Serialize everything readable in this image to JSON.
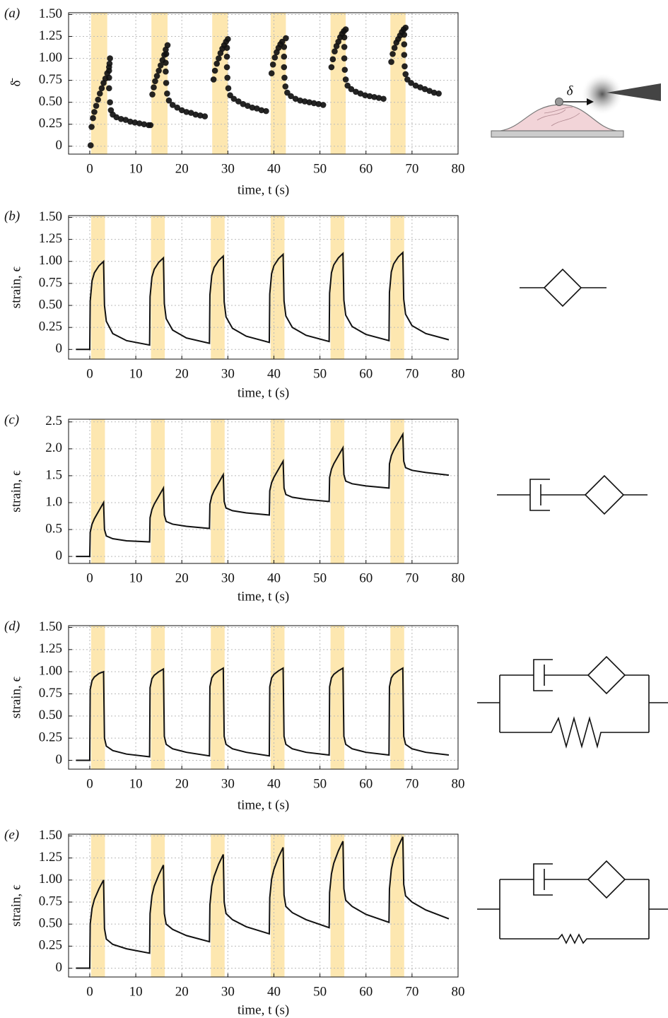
{
  "chart_data": [
    {
      "type": "scatter",
      "panel_label": "(a)",
      "xlabel": "time, t (s)",
      "ylabel": "δ̄",
      "annotation": "δ",
      "color": "#111111",
      "highlight_color": "#fde7b0",
      "highlight_spans": [
        [
          0.3,
          3.8
        ],
        [
          13.4,
          16.9
        ],
        [
          26.6,
          30
        ],
        [
          39.3,
          42.6
        ],
        [
          52.3,
          55.6
        ],
        [
          65.3,
          68.6
        ]
      ],
      "xlim": [
        -4.6,
        80
      ],
      "xticks": [
        0,
        10,
        20,
        30,
        40,
        50,
        60,
        70,
        80
      ],
      "ylim": [
        -0.09,
        1.52
      ],
      "yticks": [
        0,
        0.25,
        {
          "value": 0.5,
          "label": "0.50"
        },
        0.75,
        {
          "value": 1,
          "label": "1.00"
        },
        1.25,
        {
          "value": 1.5,
          "label": "1.50"
        }
      ],
      "grid": true,
      "x": [
        0.2,
        0.4,
        0.7,
        1,
        1.4,
        1.8,
        2.2,
        2.6,
        3,
        3.4,
        3.8,
        4.2,
        4.4,
        4.3,
        4.2,
        4.2,
        4.2,
        4.4,
        4.6,
        5,
        5.8,
        6.8,
        7.8,
        8.8,
        9.8,
        10.8,
        11.8,
        12.8,
        13.2,
        13.6,
        13.9,
        14.2,
        14.6,
        15,
        15.4,
        15.8,
        16.2,
        16.5,
        16.9,
        16.6,
        16.5,
        16.5,
        16.6,
        16.8,
        17.2,
        18,
        19,
        20,
        21,
        22,
        23,
        24,
        25,
        26.9,
        27.2,
        27.6,
        28,
        28.4,
        28.8,
        29.2,
        29.6,
        30,
        29.8,
        29.8,
        29.8,
        29.9,
        30.1,
        30.5,
        31.3,
        32.3,
        33.3,
        34.3,
        35.3,
        36.3,
        37.3,
        38.3,
        39.5,
        39.8,
        40.2,
        40.6,
        41,
        41.4,
        41.8,
        42.6,
        42.2,
        42.2,
        42.2,
        42.3,
        42.5,
        42.9,
        43.7,
        44.7,
        45.7,
        46.7,
        47.7,
        48.7,
        49.7,
        50.7,
        52.5,
        52.8,
        53.2,
        53.6,
        54,
        54.4,
        54.8,
        55.2,
        55.6,
        55.3,
        55.3,
        55.3,
        55.4,
        55.6,
        56,
        56.8,
        57.8,
        58.8,
        59.8,
        60.8,
        61.8,
        62.8,
        63.8,
        65.5,
        65.8,
        66.2,
        66.6,
        67,
        67.4,
        67.8,
        68.2,
        68.6,
        68.3,
        68.3,
        68.3,
        68.4,
        68.6,
        69,
        69.8,
        70.8,
        71.8,
        72.8,
        73.8,
        74.8,
        75.8
      ],
      "y": [
        0.01,
        0.22,
        0.32,
        0.39,
        0.46,
        0.53,
        0.6,
        0.66,
        0.72,
        0.77,
        0.83,
        0.9,
        1,
        0.94,
        0.86,
        0.78,
        0.66,
        0.5,
        0.41,
        0.36,
        0.33,
        0.31,
        0.3,
        0.28,
        0.27,
        0.26,
        0.25,
        0.24,
        0.24,
        0.59,
        0.67,
        0.74,
        0.8,
        0.86,
        0.92,
        0.98,
        1.04,
        1.1,
        1.15,
        1.05,
        0.95,
        0.85,
        0.72,
        0.6,
        0.52,
        0.47,
        0.44,
        0.41,
        0.39,
        0.38,
        0.36,
        0.35,
        0.34,
        0.76,
        0.86,
        0.94,
        1,
        1.06,
        1.11,
        1.15,
        1.19,
        1.22,
        1.12,
        1.02,
        0.9,
        0.78,
        0.66,
        0.58,
        0.54,
        0.51,
        0.48,
        0.46,
        0.44,
        0.43,
        0.41,
        0.4,
        0.83,
        0.93,
        1.01,
        1.07,
        1.12,
        1.16,
        1.19,
        1.23,
        1.13,
        1.02,
        0.9,
        0.78,
        0.68,
        0.61,
        0.57,
        0.54,
        0.52,
        0.51,
        0.5,
        0.49,
        0.48,
        0.47,
        0.9,
        0.99,
        1.08,
        1.14,
        1.19,
        1.24,
        1.28,
        1.31,
        1.33,
        1.24,
        1.13,
        1,
        0.87,
        0.76,
        0.69,
        0.65,
        0.62,
        0.6,
        0.58,
        0.57,
        0.56,
        0.55,
        0.54,
        0.96,
        1.05,
        1.12,
        1.18,
        1.22,
        1.26,
        1.3,
        1.33,
        1.35,
        1.27,
        1.16,
        1.04,
        0.91,
        0.82,
        0.76,
        0.72,
        0.69,
        0.67,
        0.65,
        0.63,
        0.61,
        0.6
      ]
    },
    {
      "type": "line",
      "panel_label": "(b)",
      "xlabel": "time, t (s)",
      "ylabel": "strain, ϵ",
      "color": "#111111",
      "highlight_color": "#fde7b0",
      "highlight_spans": [
        [
          0.3,
          3.3
        ],
        [
          13.3,
          16.3
        ],
        [
          26.3,
          29.3
        ],
        [
          39.3,
          42.3
        ],
        [
          52.3,
          55.3
        ],
        [
          65.3,
          68.3
        ]
      ],
      "xlim": [
        -4.6,
        80
      ],
      "xticks": [
        0,
        10,
        20,
        30,
        40,
        50,
        60,
        70,
        80
      ],
      "ylim": [
        -0.11,
        1.52
      ],
      "yticks": [
        0,
        0.25,
        {
          "value": 0.5,
          "label": "0.50"
        },
        0.75,
        {
          "value": 1,
          "label": "1.00"
        },
        1.25,
        {
          "value": 1.5,
          "label": "1.50"
        }
      ],
      "grid": true,
      "x": [
        -3,
        0,
        0.1,
        0.5,
        1,
        2,
        3,
        3.2,
        3.6,
        5,
        8,
        13,
        13.1,
        13.5,
        14,
        15,
        16,
        16.2,
        16.6,
        18,
        21,
        26,
        26.1,
        26.5,
        27,
        28,
        29,
        29.2,
        29.6,
        31,
        34,
        39,
        39.1,
        39.5,
        40,
        41,
        42,
        42.2,
        42.6,
        44,
        47,
        52,
        52.1,
        52.5,
        53,
        54,
        55,
        55.2,
        55.6,
        57,
        60,
        65,
        65.1,
        65.5,
        66,
        67,
        68,
        68.2,
        68.6,
        70,
        73,
        78
      ],
      "y": [
        0,
        0,
        0.55,
        0.78,
        0.87,
        0.95,
        1,
        0.5,
        0.32,
        0.18,
        0.1,
        0.05,
        0.6,
        0.82,
        0.91,
        0.99,
        1.04,
        0.52,
        0.35,
        0.22,
        0.13,
        0.07,
        0.62,
        0.84,
        0.93,
        1.01,
        1.06,
        0.54,
        0.37,
        0.24,
        0.15,
        0.08,
        0.63,
        0.86,
        0.95,
        1.03,
        1.08,
        0.55,
        0.38,
        0.25,
        0.16,
        0.09,
        0.64,
        0.87,
        0.96,
        1.04,
        1.09,
        0.56,
        0.39,
        0.26,
        0.17,
        0.1,
        0.65,
        0.88,
        0.97,
        1.05,
        1.1,
        0.57,
        0.4,
        0.27,
        0.18,
        0.11
      ]
    },
    {
      "type": "line",
      "panel_label": "(c)",
      "xlabel": "time, t (s)",
      "ylabel": "strain, ϵ",
      "color": "#111111",
      "highlight_color": "#fde7b0",
      "highlight_spans": [
        [
          0.3,
          3.3
        ],
        [
          13.3,
          16.3
        ],
        [
          26.3,
          29.3
        ],
        [
          39.3,
          42.3
        ],
        [
          52.3,
          55.3
        ],
        [
          65.3,
          68.3
        ]
      ],
      "xlim": [
        -4.6,
        80
      ],
      "xticks": [
        0,
        10,
        20,
        30,
        40,
        50,
        60,
        70,
        80
      ],
      "ylim": [
        -0.13,
        2.55
      ],
      "yticks": [
        0,
        0.5,
        {
          "value": 1,
          "label": "1.0"
        },
        1.5,
        {
          "value": 2,
          "label": "2.0"
        },
        2.5
      ],
      "grid": true,
      "x": [
        -3,
        0,
        0.1,
        0.5,
        1,
        2,
        3,
        3.2,
        3.6,
        5,
        8,
        13,
        13.1,
        13.5,
        14,
        15,
        16,
        16.2,
        16.6,
        18,
        21,
        26,
        26.1,
        26.5,
        27,
        28,
        29,
        29.2,
        29.6,
        31,
        34,
        39,
        39.1,
        39.5,
        40,
        41,
        42,
        42.2,
        42.6,
        44,
        47,
        52,
        52.1,
        52.5,
        53,
        54,
        55,
        55.2,
        55.6,
        57,
        60,
        65,
        65.1,
        65.5,
        66,
        67,
        68,
        68.2,
        68.6,
        70,
        73,
        78
      ],
      "y": [
        0,
        0,
        0.45,
        0.6,
        0.7,
        0.85,
        1,
        0.5,
        0.38,
        0.33,
        0.29,
        0.27,
        0.72,
        0.87,
        0.97,
        1.12,
        1.27,
        0.77,
        0.65,
        0.6,
        0.56,
        0.52,
        0.97,
        1.12,
        1.22,
        1.37,
        1.52,
        1.02,
        0.9,
        0.85,
        0.81,
        0.77,
        1.22,
        1.37,
        1.47,
        1.62,
        1.77,
        1.27,
        1.15,
        1.1,
        1.06,
        1.02,
        1.47,
        1.62,
        1.72,
        1.87,
        2.02,
        1.52,
        1.4,
        1.35,
        1.31,
        1.27,
        1.72,
        1.87,
        1.97,
        2.12,
        2.27,
        1.77,
        1.65,
        1.6,
        1.56,
        1.51
      ]
    },
    {
      "type": "line",
      "panel_label": "(d)",
      "xlabel": "time, t (s)",
      "ylabel": "strain, ϵ",
      "color": "#111111",
      "highlight_color": "#fde7b0",
      "highlight_spans": [
        [
          0.3,
          3.3
        ],
        [
          13.3,
          16.3
        ],
        [
          26.3,
          29.3
        ],
        [
          39.3,
          42.3
        ],
        [
          52.3,
          55.3
        ],
        [
          65.3,
          68.3
        ]
      ],
      "xlim": [
        -4.6,
        80
      ],
      "xticks": [
        0,
        10,
        20,
        30,
        40,
        50,
        60,
        70,
        80
      ],
      "ylim": [
        -0.1,
        1.52
      ],
      "yticks": [
        0,
        0.25,
        {
          "value": 0.5,
          "label": "0.50"
        },
        0.75,
        {
          "value": 1,
          "label": "1.00"
        },
        1.25,
        {
          "value": 1.5,
          "label": "1.50"
        }
      ],
      "grid": true,
      "x": [
        -3,
        0,
        0.1,
        0.5,
        1,
        2,
        3,
        3.2,
        3.6,
        5,
        8,
        13,
        13.1,
        13.5,
        14,
        15,
        16,
        16.2,
        16.6,
        18,
        21,
        26,
        26.1,
        26.5,
        27,
        28,
        29,
        29.2,
        29.6,
        31,
        34,
        39,
        39.1,
        39.5,
        40,
        41,
        42,
        42.2,
        42.6,
        44,
        47,
        52,
        52.1,
        52.5,
        53,
        54,
        55,
        55.2,
        55.6,
        57,
        60,
        65,
        65.1,
        65.5,
        66,
        67,
        68,
        68.2,
        68.6,
        70,
        73,
        78
      ],
      "y": [
        0,
        0,
        0.8,
        0.9,
        0.94,
        0.98,
        1,
        0.25,
        0.16,
        0.11,
        0.07,
        0.04,
        0.82,
        0.92,
        0.96,
        1,
        1.03,
        0.27,
        0.18,
        0.13,
        0.09,
        0.05,
        0.83,
        0.93,
        0.97,
        1.01,
        1.04,
        0.27,
        0.18,
        0.13,
        0.09,
        0.05,
        0.83,
        0.93,
        0.97,
        1.01,
        1.04,
        0.27,
        0.18,
        0.13,
        0.09,
        0.06,
        0.83,
        0.93,
        0.97,
        1.01,
        1.04,
        0.27,
        0.18,
        0.13,
        0.09,
        0.06,
        0.83,
        0.93,
        0.97,
        1.01,
        1.04,
        0.27,
        0.18,
        0.13,
        0.09,
        0.06
      ]
    },
    {
      "type": "line",
      "panel_label": "(e)",
      "xlabel": "time, t (s)",
      "ylabel": "strain, ϵ",
      "color": "#111111",
      "highlight_color": "#fde7b0",
      "highlight_spans": [
        [
          0.3,
          3.3
        ],
        [
          13.3,
          16.3
        ],
        [
          26.3,
          29.3
        ],
        [
          39.3,
          42.3
        ],
        [
          52.3,
          55.3
        ],
        [
          65.3,
          68.3
        ]
      ],
      "xlim": [
        -4.6,
        80
      ],
      "xticks": [
        0,
        10,
        20,
        30,
        40,
        50,
        60,
        70,
        80
      ],
      "ylim": [
        -0.1,
        1.52
      ],
      "yticks": [
        0,
        0.25,
        {
          "value": 0.5,
          "label": "0.50"
        },
        0.75,
        {
          "value": 1,
          "label": "1.00"
        },
        1.25,
        {
          "value": 1.5,
          "label": "1.50"
        }
      ],
      "grid": true,
      "x": [
        -3,
        0,
        0.1,
        0.5,
        1,
        2,
        3,
        3.2,
        3.6,
        5,
        8,
        13,
        13.1,
        13.5,
        14,
        15,
        16,
        16.2,
        16.6,
        18,
        21,
        26,
        26.1,
        26.5,
        27,
        28,
        29,
        29.2,
        29.6,
        31,
        34,
        39,
        39.1,
        39.5,
        40,
        41,
        42,
        42.2,
        42.6,
        44,
        47,
        52,
        52.1,
        52.5,
        53,
        54,
        55,
        55.2,
        55.6,
        57,
        60,
        65,
        65.1,
        65.5,
        66,
        67,
        68,
        68.2,
        68.6,
        70,
        73,
        78
      ],
      "y": [
        0,
        0,
        0.5,
        0.68,
        0.78,
        0.9,
        1,
        0.45,
        0.33,
        0.27,
        0.22,
        0.17,
        0.62,
        0.82,
        0.93,
        1.06,
        1.17,
        0.62,
        0.5,
        0.44,
        0.37,
        0.3,
        0.72,
        0.93,
        1.04,
        1.18,
        1.29,
        0.75,
        0.62,
        0.55,
        0.47,
        0.39,
        0.8,
        1.01,
        1.12,
        1.26,
        1.37,
        0.83,
        0.7,
        0.63,
        0.55,
        0.46,
        0.86,
        1.07,
        1.19,
        1.33,
        1.44,
        0.9,
        0.77,
        0.7,
        0.61,
        0.52,
        0.9,
        1.12,
        1.24,
        1.38,
        1.49,
        0.95,
        0.82,
        0.75,
        0.66,
        0.56
      ]
    }
  ]
}
